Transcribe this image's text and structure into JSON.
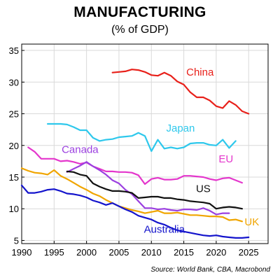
{
  "header": {
    "title": "MANUFACTURING",
    "subtitle": "(% of GDP)"
  },
  "footer": {
    "source": "Source: World Bank, CBA, Macrobond"
  },
  "chart_data": {
    "type": "line",
    "title": "MANUFACTURING",
    "subtitle": "(% of GDP)",
    "xlabel": "",
    "ylabel": "",
    "xlim": [
      1990,
      2028
    ],
    "ylim": [
      4.5,
      36
    ],
    "xticks": [
      1990,
      1995,
      2000,
      2005,
      2010,
      2015,
      2020,
      2025
    ],
    "yticks": [
      5,
      10,
      15,
      20,
      25,
      30,
      35
    ],
    "grid": true,
    "legend": "inline labels",
    "series": [
      {
        "name": "China",
        "color": "#e8201a",
        "label_at": [
          2017.5,
          31
        ],
        "points": [
          [
            2004,
            31.5
          ],
          [
            2005,
            31.6
          ],
          [
            2006,
            31.7
          ],
          [
            2007,
            32.0
          ],
          [
            2008,
            31.9
          ],
          [
            2009,
            31.6
          ],
          [
            2010,
            31.1
          ],
          [
            2011,
            31.0
          ],
          [
            2012,
            31.5
          ],
          [
            2013,
            31.0
          ],
          [
            2014,
            30.1
          ],
          [
            2015,
            29.6
          ],
          [
            2016,
            28.4
          ],
          [
            2017,
            27.6
          ],
          [
            2018,
            27.6
          ],
          [
            2019,
            27.1
          ],
          [
            2020,
            26.2
          ],
          [
            2021,
            25.9
          ],
          [
            2022,
            27.0
          ],
          [
            2023,
            26.4
          ],
          [
            2024,
            25.4
          ],
          [
            2025,
            25.0
          ]
        ]
      },
      {
        "name": "Japan",
        "color": "#2ec8ec",
        "label_at": [
          2014.5,
          22.2
        ],
        "points": [
          [
            1994,
            23.4
          ],
          [
            1995,
            23.4
          ],
          [
            1996,
            23.4
          ],
          [
            1997,
            23.3
          ],
          [
            1998,
            22.9
          ],
          [
            1999,
            22.4
          ],
          [
            2000,
            22.4
          ],
          [
            2001,
            21.2
          ],
          [
            2002,
            20.7
          ],
          [
            2003,
            20.9
          ],
          [
            2004,
            21.0
          ],
          [
            2005,
            21.3
          ],
          [
            2006,
            21.4
          ],
          [
            2007,
            21.5
          ],
          [
            2008,
            22.0
          ],
          [
            2009,
            21.5
          ],
          [
            2010,
            19.1
          ],
          [
            2011,
            20.9
          ],
          [
            2012,
            19.5
          ],
          [
            2013,
            19.7
          ],
          [
            2014,
            19.5
          ],
          [
            2015,
            19.7
          ],
          [
            2016,
            20.3
          ],
          [
            2017,
            20.4
          ],
          [
            2018,
            20.4
          ],
          [
            2019,
            20.1
          ],
          [
            2020,
            20.0
          ],
          [
            2021,
            20.9
          ],
          [
            2022,
            19.6
          ],
          [
            2023,
            20.7
          ]
        ]
      },
      {
        "name": "EU",
        "color": "#e436cc",
        "label_at": [
          2021.5,
          17.3
        ],
        "points": [
          [
            1991,
            19.7
          ],
          [
            1992,
            19.0
          ],
          [
            1993,
            17.9
          ],
          [
            1994,
            17.9
          ],
          [
            1995,
            17.9
          ],
          [
            1996,
            17.5
          ],
          [
            1997,
            17.6
          ],
          [
            1998,
            17.4
          ],
          [
            1999,
            17.1
          ],
          [
            2000,
            17.3
          ],
          [
            2001,
            16.7
          ],
          [
            2002,
            16.3
          ],
          [
            2003,
            15.9
          ],
          [
            2004,
            15.9
          ],
          [
            2005,
            15.8
          ],
          [
            2006,
            15.8
          ],
          [
            2007,
            15.7
          ],
          [
            2008,
            15.3
          ],
          [
            2009,
            13.9
          ],
          [
            2010,
            14.7
          ],
          [
            2011,
            14.9
          ],
          [
            2012,
            14.6
          ],
          [
            2013,
            14.6
          ],
          [
            2014,
            14.7
          ],
          [
            2015,
            15.2
          ],
          [
            2016,
            15.2
          ],
          [
            2017,
            15.1
          ],
          [
            2018,
            15.0
          ],
          [
            2019,
            14.7
          ],
          [
            2020,
            14.5
          ],
          [
            2021,
            14.8
          ],
          [
            2022,
            14.9
          ],
          [
            2023,
            14.5
          ],
          [
            2024,
            14.1
          ]
        ]
      },
      {
        "name": "Canada",
        "color": "#9b3fe0",
        "label_at": [
          1999,
          18.8
        ],
        "points": [
          [
            1997,
            15.8
          ],
          [
            1998,
            16.3
          ],
          [
            1999,
            16.8
          ],
          [
            2000,
            17.4
          ],
          [
            2001,
            16.7
          ],
          [
            2002,
            16.1
          ],
          [
            2003,
            15.4
          ],
          [
            2004,
            14.5
          ],
          [
            2005,
            14.0
          ],
          [
            2006,
            13.0
          ],
          [
            2007,
            12.3
          ],
          [
            2008,
            11.2
          ],
          [
            2009,
            10.1
          ],
          [
            2010,
            10.1
          ],
          [
            2011,
            9.9
          ],
          [
            2012,
            10.0
          ],
          [
            2013,
            9.8
          ],
          [
            2014,
            9.7
          ],
          [
            2015,
            9.9
          ],
          [
            2016,
            9.9
          ],
          [
            2017,
            9.8
          ],
          [
            2018,
            10.1
          ],
          [
            2019,
            9.7
          ],
          [
            2020,
            9.1
          ],
          [
            2021,
            9.3
          ],
          [
            2022,
            9.3
          ]
        ]
      },
      {
        "name": "US",
        "color": "#111111",
        "label_at": [
          2018,
          12.6
        ],
        "points": [
          [
            1997,
            15.9
          ],
          [
            1998,
            15.8
          ],
          [
            1999,
            15.4
          ],
          [
            2000,
            15.2
          ],
          [
            2001,
            14.0
          ],
          [
            2002,
            13.5
          ],
          [
            2003,
            13.1
          ],
          [
            2004,
            12.8
          ],
          [
            2005,
            12.8
          ],
          [
            2006,
            12.7
          ],
          [
            2007,
            12.5
          ],
          [
            2008,
            11.7
          ],
          [
            2009,
            11.8
          ],
          [
            2010,
            11.9
          ],
          [
            2011,
            11.9
          ],
          [
            2012,
            11.7
          ],
          [
            2013,
            11.7
          ],
          [
            2014,
            11.5
          ],
          [
            2015,
            11.4
          ],
          [
            2016,
            11.2
          ],
          [
            2017,
            11.1
          ],
          [
            2018,
            11.0
          ],
          [
            2019,
            10.8
          ],
          [
            2020,
            10.0
          ],
          [
            2021,
            10.2
          ],
          [
            2022,
            10.3
          ],
          [
            2023,
            10.2
          ],
          [
            2024,
            10.0
          ]
        ]
      },
      {
        "name": "UK",
        "color": "#f0a500",
        "label_at": [
          2025.5,
          7.4
        ],
        "points": [
          [
            1990,
            16.4
          ],
          [
            1991,
            16.0
          ],
          [
            1992,
            15.7
          ],
          [
            1993,
            15.6
          ],
          [
            1994,
            15.4
          ],
          [
            1995,
            16.1
          ],
          [
            1996,
            15.2
          ],
          [
            1997,
            14.7
          ],
          [
            1998,
            14.1
          ],
          [
            1999,
            13.5
          ],
          [
            2000,
            13.0
          ],
          [
            2001,
            12.4
          ],
          [
            2002,
            12.0
          ],
          [
            2003,
            11.4
          ],
          [
            2004,
            10.9
          ],
          [
            2005,
            10.4
          ],
          [
            2006,
            10.1
          ],
          [
            2007,
            9.8
          ],
          [
            2008,
            9.6
          ],
          [
            2009,
            9.3
          ],
          [
            2010,
            9.5
          ],
          [
            2011,
            9.7
          ],
          [
            2012,
            9.3
          ],
          [
            2013,
            9.3
          ],
          [
            2014,
            9.4
          ],
          [
            2015,
            9.2
          ],
          [
            2016,
            9.0
          ],
          [
            2017,
            9.0
          ],
          [
            2018,
            8.9
          ],
          [
            2019,
            8.8
          ],
          [
            2020,
            8.8
          ],
          [
            2021,
            8.7
          ],
          [
            2022,
            8.2
          ],
          [
            2023,
            8.3
          ],
          [
            2024,
            8.0
          ]
        ]
      },
      {
        "name": "Australia",
        "color": "#1414cc",
        "label_at": [
          2012,
          6.2
        ],
        "points": [
          [
            1990,
            13.7
          ],
          [
            1991,
            12.5
          ],
          [
            1992,
            12.5
          ],
          [
            1993,
            12.7
          ],
          [
            1994,
            13.0
          ],
          [
            1995,
            13.1
          ],
          [
            1996,
            12.8
          ],
          [
            1997,
            12.4
          ],
          [
            1998,
            12.3
          ],
          [
            1999,
            12.1
          ],
          [
            2000,
            11.8
          ],
          [
            2001,
            11.3
          ],
          [
            2002,
            11.0
          ],
          [
            2003,
            10.6
          ],
          [
            2004,
            10.9
          ],
          [
            2005,
            10.4
          ],
          [
            2006,
            9.9
          ],
          [
            2007,
            9.5
          ],
          [
            2008,
            8.9
          ],
          [
            2009,
            8.6
          ],
          [
            2010,
            8.3
          ],
          [
            2011,
            7.8
          ],
          [
            2012,
            7.5
          ],
          [
            2013,
            7.0
          ],
          [
            2014,
            6.6
          ],
          [
            2015,
            6.4
          ],
          [
            2016,
            6.2
          ],
          [
            2017,
            6.0
          ],
          [
            2018,
            5.8
          ],
          [
            2019,
            5.7
          ],
          [
            2020,
            5.8
          ],
          [
            2021,
            5.6
          ],
          [
            2022,
            5.5
          ],
          [
            2023,
            5.4
          ],
          [
            2024,
            5.4
          ],
          [
            2025,
            5.5
          ]
        ]
      }
    ]
  }
}
